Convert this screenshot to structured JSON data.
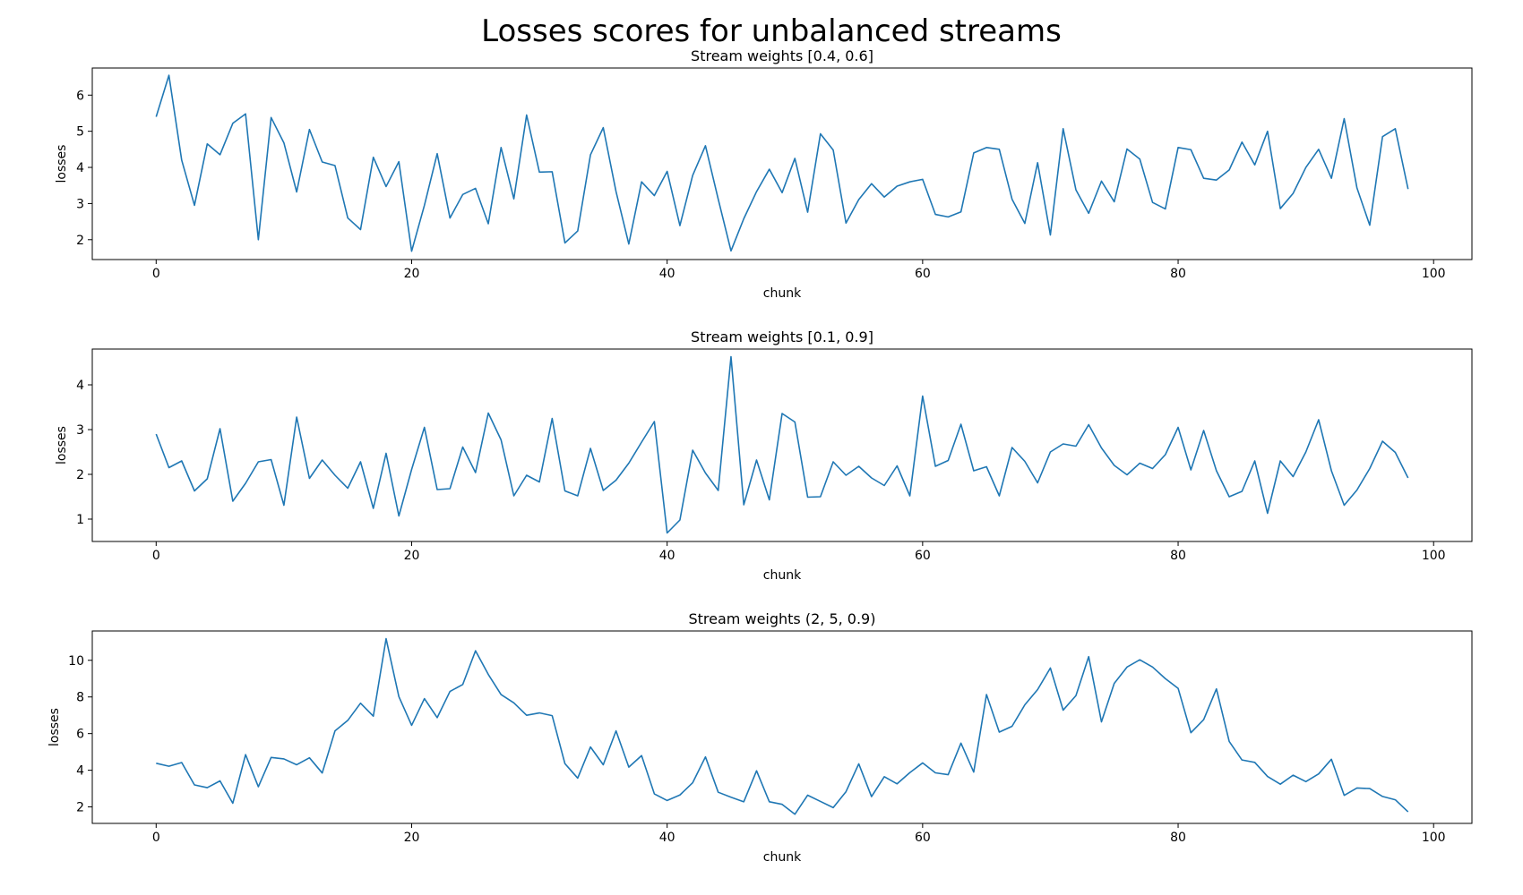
{
  "suptitle": "Losses scores for unbalanced streams",
  "chart_data": [
    {
      "type": "line",
      "title": "Stream weights [0.4, 0.6]",
      "xlabel": "chunk",
      "ylabel": "losses",
      "xlim": [
        -5,
        103
      ],
      "ylim": [
        1.45,
        6.75
      ],
      "xticks": [
        0,
        20,
        40,
        60,
        80,
        100
      ],
      "yticks": [
        2,
        3,
        4,
        5,
        6
      ],
      "grid": false,
      "series": [
        {
          "color": "#1f77b4",
          "x_start": 0,
          "x_step": 1,
          "values": [
            5.4,
            6.55,
            4.2,
            2.95,
            4.65,
            4.35,
            5.22,
            5.48,
            2.0,
            5.38,
            4.68,
            3.32,
            5.05,
            4.15,
            4.05,
            2.6,
            2.28,
            4.28,
            3.47,
            4.16,
            1.68,
            2.95,
            4.38,
            2.6,
            3.25,
            3.42,
            2.44,
            4.55,
            3.13,
            5.45,
            3.87,
            3.88,
            1.91,
            2.24,
            4.35,
            5.1,
            3.33,
            1.88,
            3.6,
            3.22,
            3.89,
            2.39,
            3.78,
            4.6,
            3.12,
            1.69,
            2.58,
            3.33,
            3.95,
            3.3,
            4.25,
            2.76,
            4.93,
            4.48,
            2.46,
            3.11,
            3.55,
            3.18,
            3.48,
            3.6,
            3.67,
            2.7,
            2.63,
            2.77,
            4.4,
            4.55,
            4.5,
            3.12,
            2.45,
            4.13,
            2.13,
            5.07,
            3.38,
            2.73,
            3.62,
            3.05,
            4.51,
            4.23,
            3.03,
            2.85,
            4.55,
            4.49,
            3.7,
            3.65,
            3.93,
            4.7,
            4.07,
            5.0,
            2.86,
            3.28,
            4.0,
            4.5,
            3.7,
            5.35,
            3.43,
            2.4,
            4.85,
            5.07,
            3.4
          ]
        }
      ]
    },
    {
      "type": "line",
      "title": "Stream weights [0.1, 0.9]",
      "xlabel": "chunk",
      "ylabel": "losses",
      "xlim": [
        -5,
        103
      ],
      "ylim": [
        0.5,
        4.8
      ],
      "xticks": [
        0,
        20,
        40,
        60,
        80,
        100
      ],
      "yticks": [
        1,
        2,
        3,
        4
      ],
      "grid": false,
      "series": [
        {
          "color": "#1f77b4",
          "x_start": 0,
          "x_step": 1,
          "values": [
            2.9,
            2.15,
            2.3,
            1.63,
            1.9,
            3.02,
            1.4,
            1.8,
            2.28,
            2.33,
            1.31,
            3.28,
            1.91,
            2.32,
            1.98,
            1.69,
            2.28,
            1.24,
            2.47,
            1.07,
            2.11,
            3.05,
            1.66,
            1.68,
            2.61,
            2.04,
            3.37,
            2.77,
            1.52,
            1.98,
            1.83,
            3.25,
            1.63,
            1.52,
            2.58,
            1.64,
            1.87,
            2.25,
            2.72,
            3.18,
            0.69,
            0.98,
            2.54,
            2.03,
            1.64,
            4.63,
            1.32,
            2.32,
            1.43,
            3.36,
            3.17,
            1.49,
            1.5,
            2.28,
            1.98,
            2.18,
            1.92,
            1.75,
            2.19,
            1.52,
            3.75,
            2.18,
            2.31,
            3.12,
            2.08,
            2.17,
            1.52,
            2.6,
            2.29,
            1.81,
            2.5,
            2.68,
            2.63,
            3.11,
            2.59,
            2.2,
            1.99,
            2.25,
            2.13,
            2.44,
            3.05,
            2.1,
            2.98,
            2.08,
            1.5,
            1.62,
            2.3,
            1.13,
            2.3,
            1.95,
            2.5,
            3.22,
            2.08,
            1.31,
            1.65,
            2.13,
            2.74,
            2.49,
            1.92
          ]
        }
      ]
    },
    {
      "type": "line",
      "title": "Stream weights (2, 5, 0.9)",
      "xlabel": "chunk",
      "ylabel": "losses",
      "xlim": [
        -5,
        103
      ],
      "ylim": [
        1.1,
        11.6
      ],
      "xticks": [
        0,
        20,
        40,
        60,
        80,
        100
      ],
      "yticks": [
        2,
        4,
        6,
        8,
        10
      ],
      "grid": false,
      "series": [
        {
          "color": "#1f77b4",
          "x_start": 0,
          "x_step": 1,
          "values": [
            4.38,
            4.22,
            4.42,
            3.2,
            3.05,
            3.42,
            2.2,
            4.85,
            3.1,
            4.7,
            4.62,
            4.3,
            4.68,
            3.85,
            6.15,
            6.72,
            7.66,
            6.95,
            11.18,
            8.02,
            6.45,
            7.91,
            6.87,
            8.3,
            8.68,
            10.52,
            9.23,
            8.13,
            7.68,
            7.0,
            7.13,
            6.98,
            4.36,
            3.57,
            5.27,
            4.3,
            6.15,
            4.17,
            4.8,
            2.71,
            2.35,
            2.65,
            3.32,
            4.73,
            2.8,
            2.53,
            2.28,
            3.97,
            2.28,
            2.14,
            1.6,
            2.64,
            2.3,
            1.96,
            2.83,
            4.35,
            2.56,
            3.65,
            3.26,
            3.87,
            4.4,
            3.86,
            3.76,
            5.48,
            3.9,
            8.13,
            6.08,
            6.4,
            7.57,
            8.4,
            9.58,
            7.28,
            8.07,
            10.2,
            6.64,
            8.74,
            9.63,
            10.03,
            9.63,
            9.0,
            8.47,
            6.05,
            6.76,
            8.44,
            5.57,
            4.56,
            4.43,
            3.66,
            3.24,
            3.73,
            3.38,
            3.8,
            4.6,
            2.63,
            3.03,
            3.0,
            2.57,
            2.39,
            1.73
          ]
        }
      ]
    }
  ]
}
